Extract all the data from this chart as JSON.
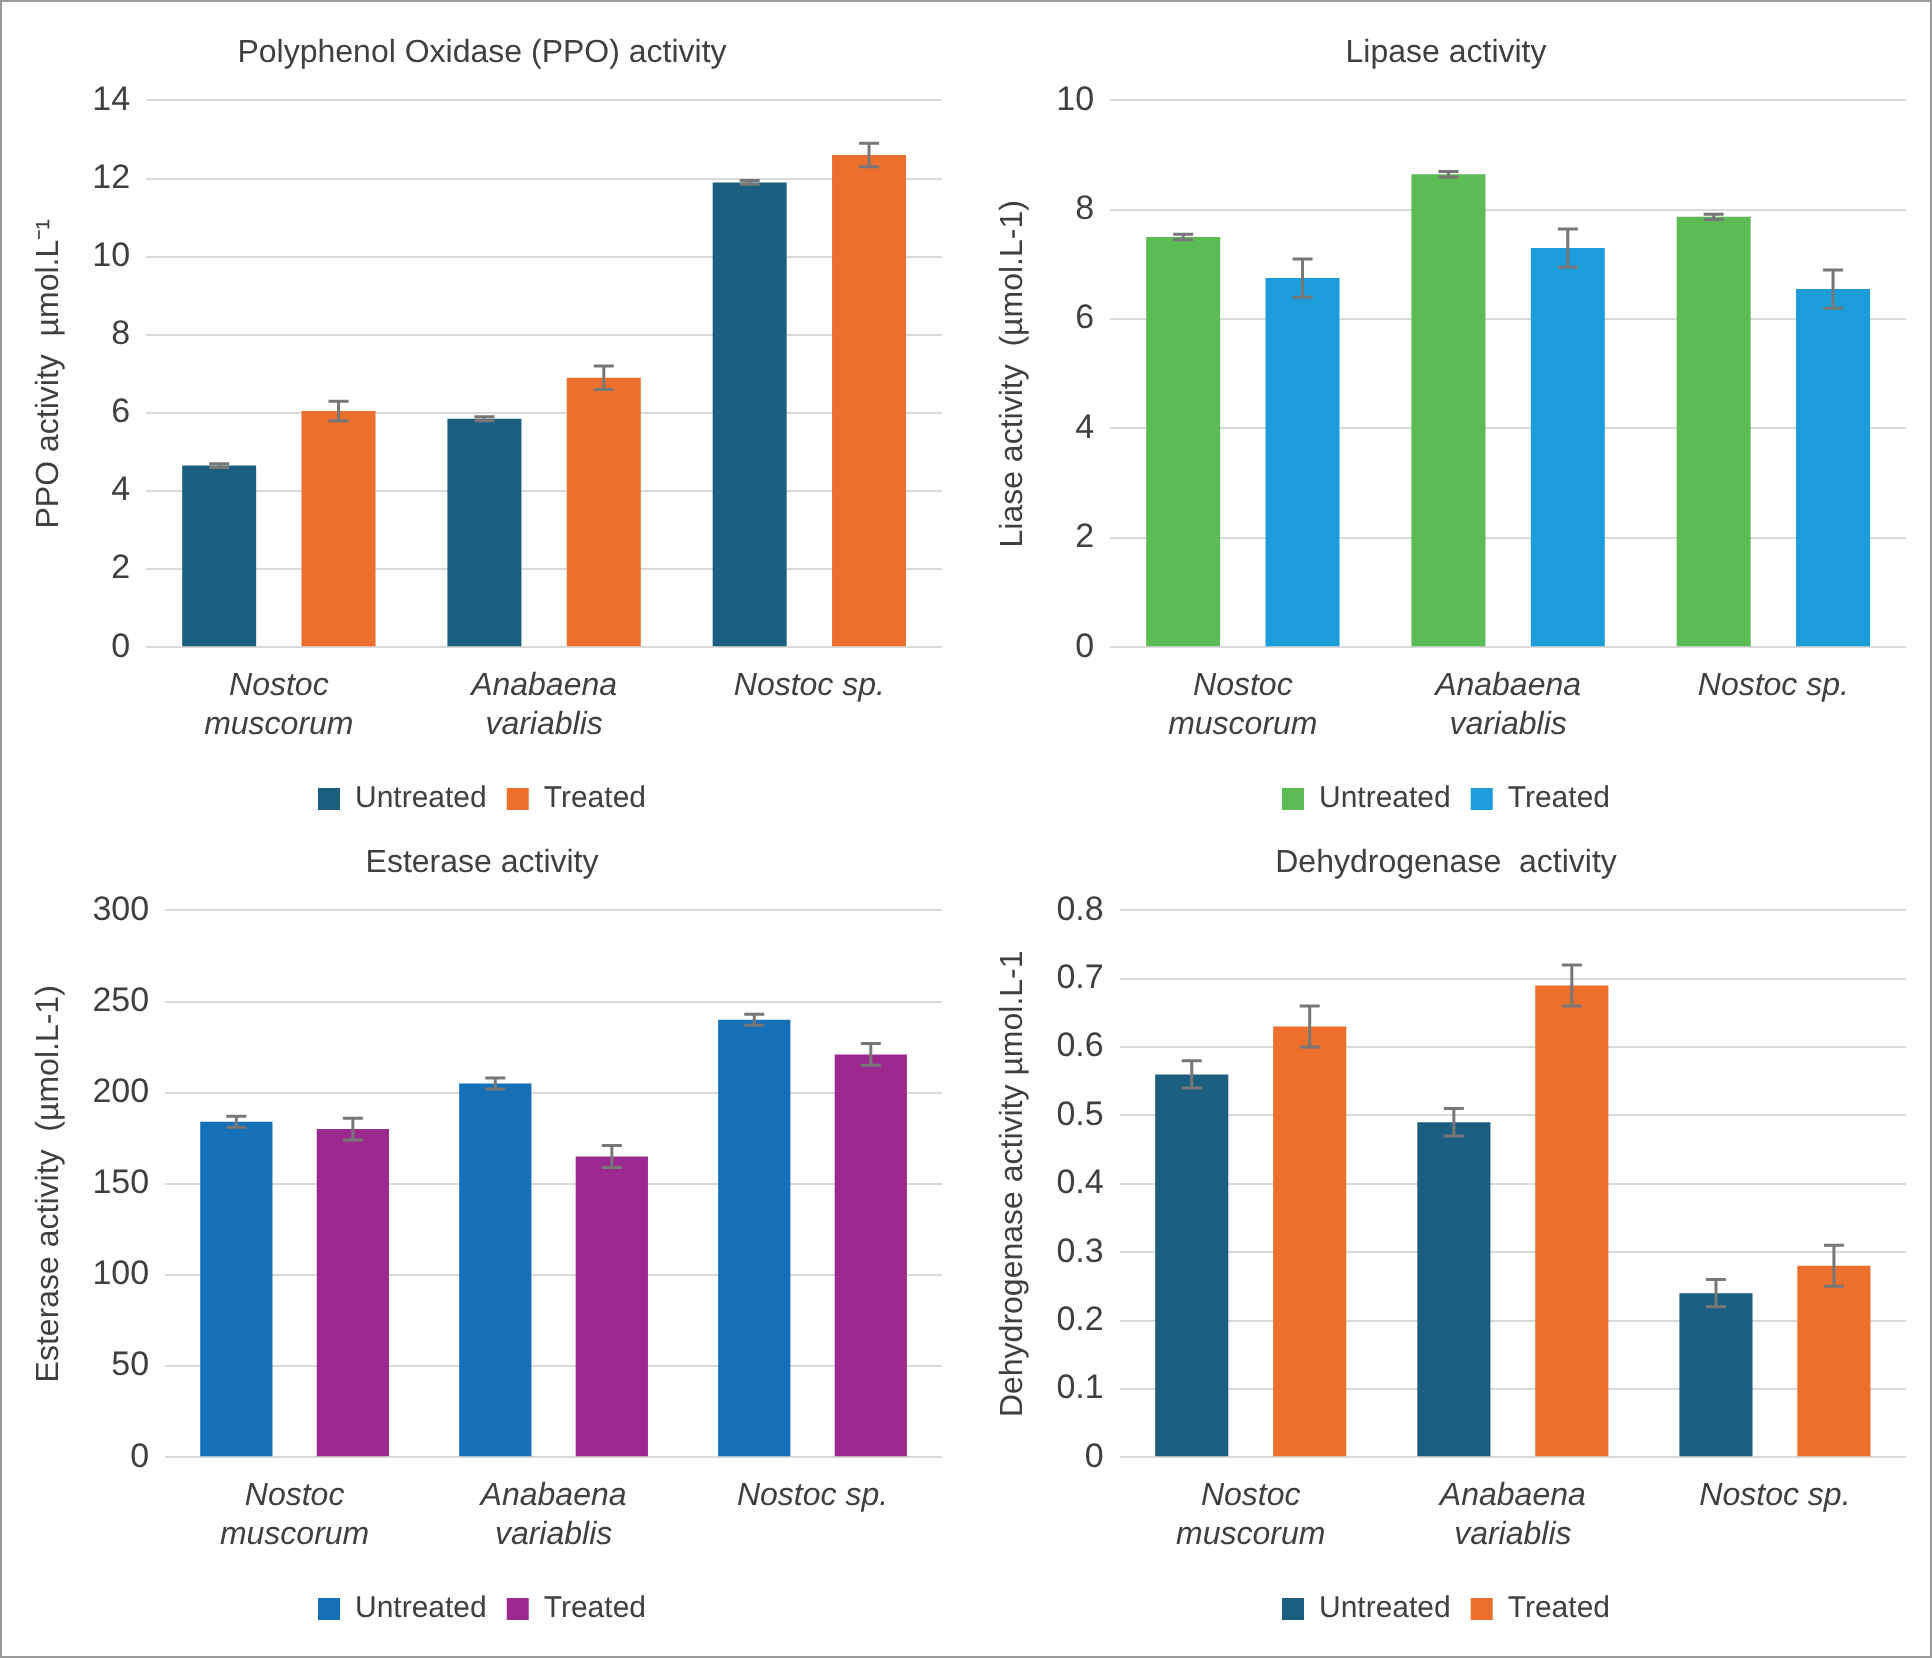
{
  "chart_data": [
    {
      "type": "bar",
      "title": "Polyphenol Oxidase (PPO) activity",
      "ylabel": "PPO activity  µmol.L⁻¹",
      "categories": [
        "Nostoc muscorum",
        "Anabaena variablis",
        "Nostoc sp."
      ],
      "series": [
        {
          "name": "Untreated",
          "color": "#1b5e80",
          "values": [
            4.65,
            5.85,
            11.9
          ],
          "errors": [
            0.05,
            0.05,
            0.05
          ]
        },
        {
          "name": "Treated",
          "color": "#ed6f2d",
          "values": [
            6.05,
            6.9,
            12.6
          ],
          "errors": [
            0.25,
            0.3,
            0.3
          ]
        }
      ],
      "ylim": [
        0,
        14
      ],
      "yticks": [
        0,
        2,
        4,
        6,
        8,
        10,
        12,
        14
      ],
      "grid": "y",
      "legend": "bottom"
    },
    {
      "type": "bar",
      "title": "Lipase activity",
      "ylabel": "Liase activity  (µmol.L-1)",
      "categories": [
        "Nostoc muscorum",
        "Anabaena variablis",
        "Nostoc sp."
      ],
      "series": [
        {
          "name": "Untreated",
          "color": "#5dbb55",
          "values": [
            7.5,
            8.65,
            7.87
          ],
          "errors": [
            0.05,
            0.05,
            0.05
          ]
        },
        {
          "name": "Treated",
          "color": "#1c9cd8",
          "values": [
            6.75,
            7.3,
            6.55
          ],
          "errors": [
            0.35,
            0.35,
            0.35
          ]
        }
      ],
      "ylim": [
        0,
        10
      ],
      "yticks": [
        0,
        2,
        4,
        6,
        8,
        10
      ],
      "grid": "y",
      "legend": "bottom"
    },
    {
      "type": "bar",
      "title": "Esterase activity",
      "ylabel": "Esterase activity  (µmol.L-1)",
      "categories": [
        "Nostoc muscorum",
        "Anabaena variablis",
        "Nostoc sp."
      ],
      "series": [
        {
          "name": "Untreated",
          "color": "#1570b8",
          "values": [
            184,
            205,
            240
          ],
          "errors": [
            3,
            3,
            3
          ]
        },
        {
          "name": "Treated",
          "color": "#9c2a8e",
          "values": [
            180,
            165,
            221
          ],
          "errors": [
            6,
            6,
            6
          ]
        }
      ],
      "ylim": [
        0,
        300
      ],
      "yticks": [
        0,
        50,
        100,
        150,
        200,
        250,
        300
      ],
      "grid": "y",
      "legend": "bottom"
    },
    {
      "type": "bar",
      "title": "Dehydrogenase  activity",
      "ylabel": "Dehydrogenase activity µmol.L-1",
      "categories": [
        "Nostoc muscorum",
        "Anabaena variablis",
        "Nostoc sp."
      ],
      "series": [
        {
          "name": "Untreated",
          "color": "#1b5e80",
          "values": [
            0.56,
            0.49,
            0.24
          ],
          "errors": [
            0.02,
            0.02,
            0.02
          ]
        },
        {
          "name": "Treated",
          "color": "#ed6f2d",
          "values": [
            0.63,
            0.69,
            0.28
          ],
          "errors": [
            0.03,
            0.03,
            0.03
          ]
        }
      ],
      "ylim": [
        0,
        0.8
      ],
      "yticks": [
        0,
        0.1,
        0.2,
        0.3,
        0.4,
        0.5,
        0.6,
        0.7,
        0.8
      ],
      "grid": "y",
      "legend": "bottom"
    }
  ]
}
